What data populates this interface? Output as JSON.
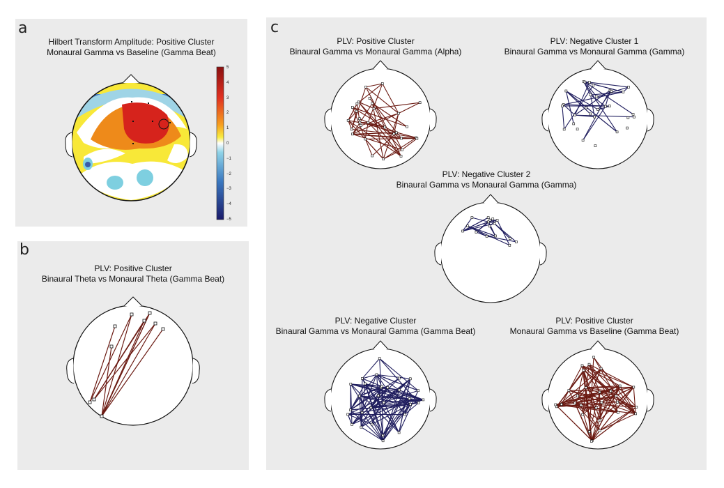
{
  "panels": {
    "a": {
      "letter": "a",
      "title_line1": "Hilbert Transform Amplitude: Positive Cluster",
      "title_line2": "Monaural Gamma vs Baseline (Gamma Beat)",
      "colorbar_ticks": [
        "5",
        "4",
        "3",
        "2",
        "1",
        "0",
        "−1",
        "−2",
        "−3",
        "−4",
        "−5"
      ]
    },
    "b": {
      "letter": "b",
      "title_line1": "PLV: Positive Cluster",
      "title_line2": "Binaural Theta vs Monaural Theta (Gamma Beat)"
    },
    "c": {
      "letter": "c",
      "maps": [
        {
          "title_line1": "PLV: Positive Cluster",
          "title_line2": "Binaural Gamma vs Monaural Gamma (Alpha)"
        },
        {
          "title_line1": "PLV: Negative Cluster 1",
          "title_line2": "Binaural Gamma vs Monaural Gamma (Gamma)"
        },
        {
          "title_line1": "PLV: Negative Cluster 2",
          "title_line2": "Binaural Gamma vs Monaural Gamma (Gamma)"
        },
        {
          "title_line1": "PLV: Negative Cluster",
          "title_line2": "Binaural Gamma vs Monaural Gamma (Gamma Beat)"
        },
        {
          "title_line1": "PLV: Positive Cluster",
          "title_line2": "Monaural Gamma vs Baseline (Gamma Beat)"
        }
      ]
    }
  },
  "colors": {
    "panel_bg": "#ebebeb",
    "positive_line": "#6b1a12",
    "negative_line": "#1f1d5e",
    "head_outline": "#111111"
  }
}
